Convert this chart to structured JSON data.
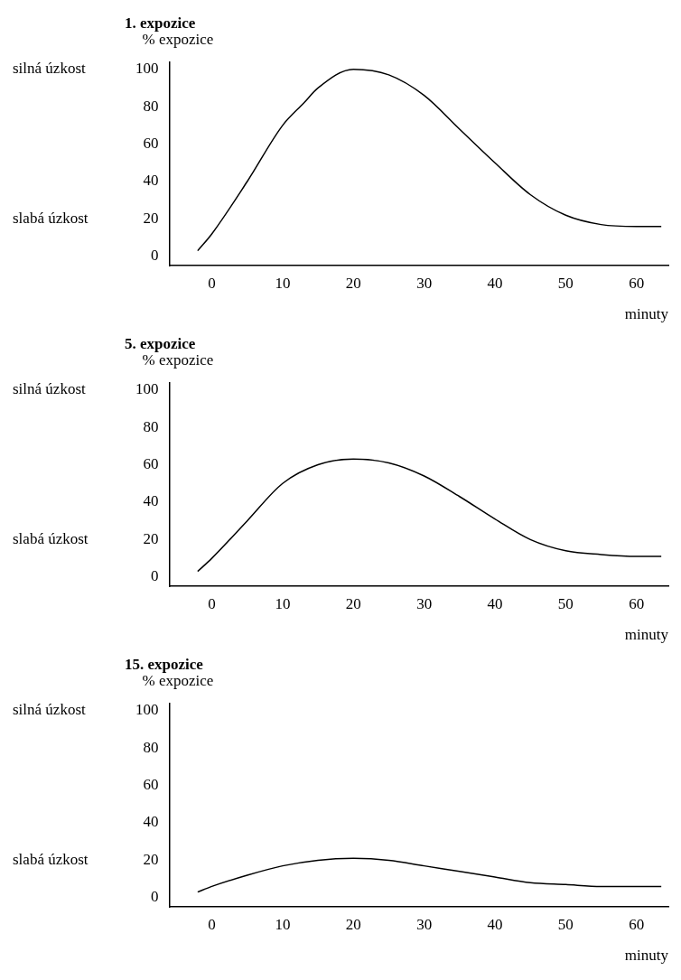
{
  "chart_data": [
    {
      "type": "line",
      "title": "1. expozice",
      "ylabel": "% expozice",
      "xlabel": "minuty",
      "xlim": [
        -6,
        64.5
      ],
      "ylim": [
        -5,
        104
      ],
      "xticks": [
        0,
        10,
        20,
        30,
        40,
        50,
        60
      ],
      "yticks": [
        0,
        20,
        40,
        60,
        80,
        100
      ],
      "grid": false,
      "annotations": [
        "silná úzkost",
        "slabá úzkost"
      ],
      "series": [
        {
          "color": "#000000",
          "x": [
            -2,
            0,
            5,
            10,
            13,
            15,
            20,
            25,
            30,
            35,
            40,
            45,
            50,
            55,
            60,
            63.5
          ],
          "values": [
            3,
            12,
            40,
            70,
            82,
            90,
            100,
            97,
            86,
            68,
            50,
            33,
            22,
            17,
            16,
            16
          ]
        }
      ]
    },
    {
      "type": "line",
      "title": "5. expozice",
      "ylabel": "% expozice",
      "xlabel": "minuty",
      "xlim": [
        -6,
        64.5
      ],
      "ylim": [
        -5,
        104
      ],
      "xticks": [
        0,
        10,
        20,
        30,
        40,
        50,
        60
      ],
      "yticks": [
        0,
        20,
        40,
        60,
        80,
        100
      ],
      "grid": false,
      "annotations": [
        "silná úzkost",
        "slabá úzkost"
      ],
      "series": [
        {
          "color": "#000000",
          "x": [
            -2,
            0,
            5,
            10,
            15,
            20,
            25,
            30,
            35,
            40,
            45,
            50,
            55,
            60,
            63.5
          ],
          "values": [
            3,
            10,
            30,
            50,
            60,
            63,
            61,
            54,
            43,
            31,
            20,
            14,
            12,
            11,
            11
          ]
        }
      ]
    },
    {
      "type": "line",
      "title": "15. expozice",
      "ylabel": "% expozice",
      "xlabel": "minuty",
      "xlim": [
        -6,
        64.5
      ],
      "ylim": [
        -5,
        104
      ],
      "xticks": [
        0,
        10,
        20,
        30,
        40,
        50,
        60
      ],
      "yticks": [
        0,
        20,
        40,
        60,
        80,
        100
      ],
      "grid": false,
      "annotations": [
        "silná úzkost",
        "slabá úzkost"
      ],
      "series": [
        {
          "color": "#000000",
          "x": [
            -2,
            0,
            5,
            10,
            15,
            20,
            25,
            30,
            35,
            40,
            45,
            50,
            55,
            60,
            63.5
          ],
          "values": [
            3,
            6,
            12,
            17,
            20,
            21,
            20,
            17,
            14,
            11,
            8,
            7,
            6,
            6,
            6
          ]
        }
      ]
    }
  ]
}
